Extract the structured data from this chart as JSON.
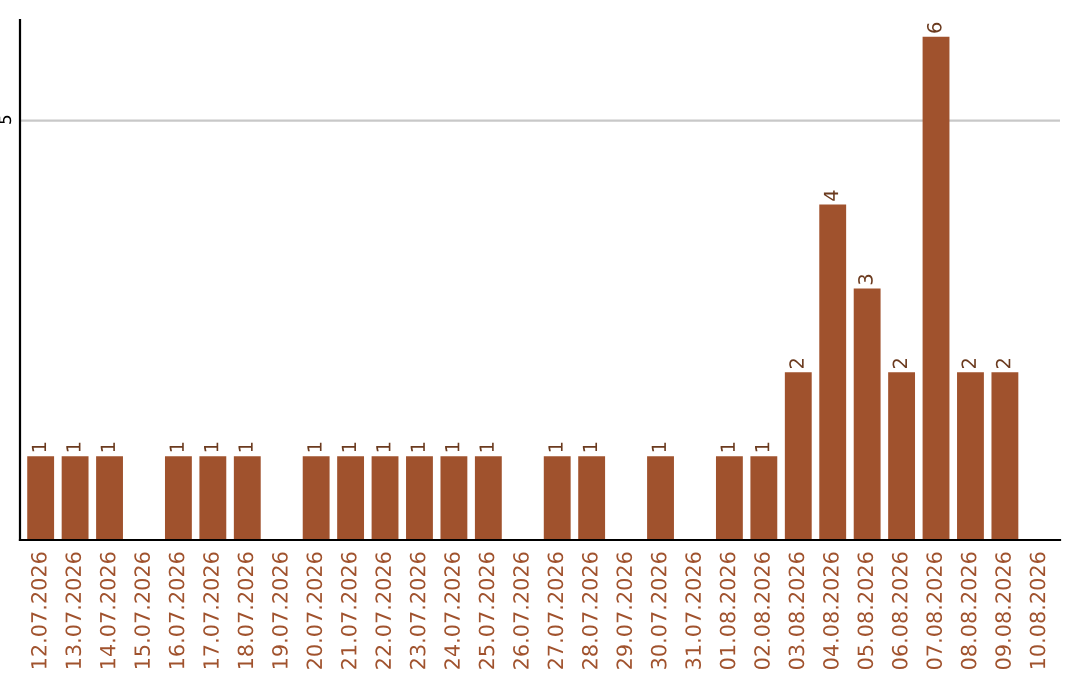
{
  "chart_data": {
    "type": "bar",
    "categories": [
      "12.07.2026",
      "13.07.2026",
      "14.07.2026",
      "15.07.2026",
      "16.07.2026",
      "17.07.2026",
      "18.07.2026",
      "19.07.2026",
      "20.07.2026",
      "21.07.2026",
      "22.07.2026",
      "23.07.2026",
      "24.07.2026",
      "25.07.2026",
      "26.07.2026",
      "27.07.2026",
      "28.07.2026",
      "29.07.2026",
      "30.07.2026",
      "31.07.2026",
      "01.08.2026",
      "02.08.2026",
      "03.08.2026",
      "04.08.2026",
      "05.08.2026",
      "06.08.2026",
      "07.08.2026",
      "08.08.2026",
      "09.08.2026",
      "10.08.2026"
    ],
    "values": [
      1,
      1,
      1,
      0,
      1,
      1,
      1,
      0,
      1,
      1,
      1,
      1,
      1,
      1,
      0,
      1,
      1,
      0,
      1,
      0,
      1,
      1,
      2,
      4,
      3,
      2,
      6,
      2,
      2,
      0
    ],
    "value_labels": [
      "1",
      "1",
      "1",
      null,
      "1",
      "1",
      "1",
      null,
      "1",
      "1",
      "1",
      "1",
      "1",
      "1",
      null,
      "1",
      "1",
      null,
      "1",
      null,
      "1",
      "1",
      "2",
      "4",
      "3",
      "2",
      "6",
      "2",
      "2",
      null
    ],
    "color": "#a0522d",
    "ylim": [
      0,
      6.2
    ],
    "yticks": [
      5
    ],
    "grid": "y",
    "legend": false
  }
}
